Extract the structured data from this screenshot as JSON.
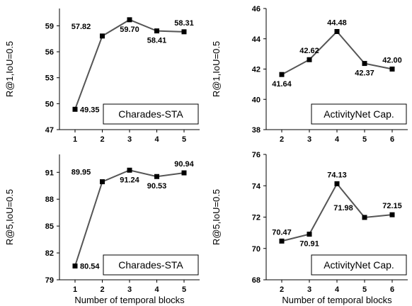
{
  "chart_data": [
    {
      "type": "line",
      "x": [
        1,
        2,
        3,
        4,
        5
      ],
      "values": [
        49.35,
        57.82,
        59.7,
        58.41,
        58.31
      ],
      "data_labels": [
        "49.35",
        "57.82",
        "59.70",
        "58.41",
        "58.31"
      ],
      "xticks": [
        "1",
        "2",
        "3",
        "4",
        "5"
      ],
      "yticks": [
        "47",
        "50",
        "53",
        "56",
        "59"
      ],
      "ylim": [
        47,
        61
      ],
      "ylabel": "R@1,IoU=0.5",
      "xlabel": "",
      "box_label": "Charades-STA"
    },
    {
      "type": "line",
      "x": [
        2,
        3,
        4,
        5,
        6
      ],
      "values": [
        41.64,
        42.62,
        44.48,
        42.37,
        42.0
      ],
      "data_labels": [
        "41.64",
        "42.62",
        "44.48",
        "42.37",
        "42.00"
      ],
      "xticks": [
        "2",
        "3",
        "4",
        "5",
        "6"
      ],
      "yticks": [
        "38",
        "40",
        "42",
        "44",
        "46"
      ],
      "ylim": [
        38,
        46
      ],
      "ylabel": "R@1,IoU=0.5",
      "xlabel": "",
      "box_label": "ActivityNet Cap."
    },
    {
      "type": "line",
      "x": [
        1,
        2,
        3,
        4,
        5
      ],
      "values": [
        80.54,
        89.95,
        91.24,
        90.53,
        90.94
      ],
      "data_labels": [
        "80.54",
        "89.95",
        "91.24",
        "90.53",
        "90.94"
      ],
      "xticks": [
        "1",
        "2",
        "3",
        "4",
        "5"
      ],
      "yticks": [
        "79",
        "82",
        "85",
        "88",
        "91"
      ],
      "ylim": [
        79,
        93
      ],
      "ylabel": "R@5,IoU=0.5",
      "xlabel": "Number of temporal blocks",
      "box_label": "Charades-STA"
    },
    {
      "type": "line",
      "x": [
        2,
        3,
        4,
        5,
        6
      ],
      "values": [
        70.47,
        70.91,
        74.13,
        71.98,
        72.15
      ],
      "data_labels": [
        "70.47",
        "70.91",
        "74.13",
        "71.98",
        "72.15"
      ],
      "xticks": [
        "2",
        "3",
        "4",
        "5",
        "6"
      ],
      "yticks": [
        "68",
        "70",
        "72",
        "74",
        "76"
      ],
      "ylim": [
        68,
        76
      ],
      "ylabel": "R@5,IoU=0.5",
      "xlabel": "Number of temporal blocks",
      "box_label": "ActivityNet Cap."
    }
  ]
}
